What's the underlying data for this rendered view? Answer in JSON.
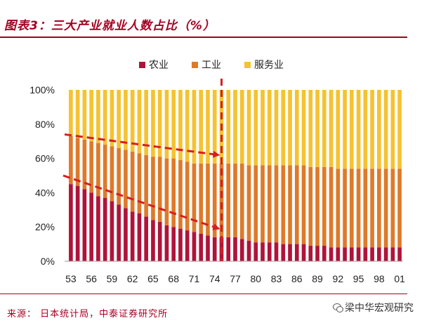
{
  "header": {
    "title": "图表3：三大产业就业人数占比（%）"
  },
  "footer": {
    "source": "来源：  日本统计局，中泰证券研究所",
    "watermark": "梁中华宏观研究"
  },
  "colors": {
    "agriculture": "#b0133a",
    "industry": "#de7a2a",
    "services": "#f6c232",
    "arrow": "#d51f1f",
    "title": "#a50021"
  },
  "chart_data": {
    "type": "bar",
    "stacked": true,
    "normalized": true,
    "categories": [
      "53",
      "54",
      "55",
      "56",
      "57",
      "58",
      "59",
      "60",
      "61",
      "62",
      "63",
      "64",
      "65",
      "66",
      "67",
      "68",
      "69",
      "70",
      "71",
      "72",
      "73",
      "74",
      "75",
      "76",
      "77",
      "78",
      "79",
      "80",
      "81",
      "82",
      "83",
      "84",
      "85",
      "86",
      "87",
      "88",
      "89",
      "90",
      "91",
      "92",
      "93",
      "94",
      "95",
      "96",
      "97",
      "98",
      "99",
      "00",
      "01"
    ],
    "x_tick_labels": [
      "53",
      "56",
      "59",
      "62",
      "65",
      "68",
      "71",
      "74",
      "77",
      "80",
      "83",
      "86",
      "89",
      "92",
      "95",
      "98",
      "01"
    ],
    "y_ticks": [
      "0%",
      "20%",
      "40%",
      "60%",
      "80%",
      "100%"
    ],
    "ylim": [
      0,
      100
    ],
    "series": [
      {
        "name": "农业",
        "color": "#b0133a",
        "values": [
          45,
          44,
          42,
          40,
          38,
          37,
          35,
          33,
          31,
          29,
          28,
          26,
          24,
          23,
          21,
          20,
          19,
          18,
          17,
          16,
          15,
          14,
          14,
          14,
          14,
          13,
          12,
          11,
          11,
          11,
          11,
          10,
          10,
          10,
          10,
          9,
          9,
          9,
          8,
          8,
          8,
          8,
          8,
          8,
          8,
          8,
          8,
          8,
          8
        ]
      },
      {
        "name": "工业",
        "color": "#de7a2a",
        "values": [
          28,
          28,
          29,
          30,
          31,
          31,
          32,
          33,
          34,
          35,
          35,
          36,
          37,
          38,
          39,
          40,
          40,
          40,
          40,
          41,
          42,
          43,
          43,
          43,
          43,
          44,
          44,
          45,
          45,
          45,
          45,
          46,
          46,
          46,
          46,
          46,
          46,
          46,
          47,
          46,
          46,
          46,
          46,
          46,
          46,
          46,
          46,
          46,
          46
        ]
      },
      {
        "name": "服务业",
        "color": "#f6c232",
        "values": [
          27,
          28,
          29,
          30,
          31,
          32,
          33,
          34,
          35,
          36,
          37,
          38,
          39,
          39,
          40,
          40,
          41,
          42,
          43,
          43,
          43,
          43,
          43,
          43,
          43,
          43,
          44,
          44,
          44,
          44,
          44,
          44,
          44,
          44,
          44,
          45,
          45,
          45,
          45,
          46,
          46,
          46,
          46,
          46,
          46,
          46,
          46,
          46,
          46
        ]
      }
    ],
    "legend_position": "top",
    "grid": false
  }
}
